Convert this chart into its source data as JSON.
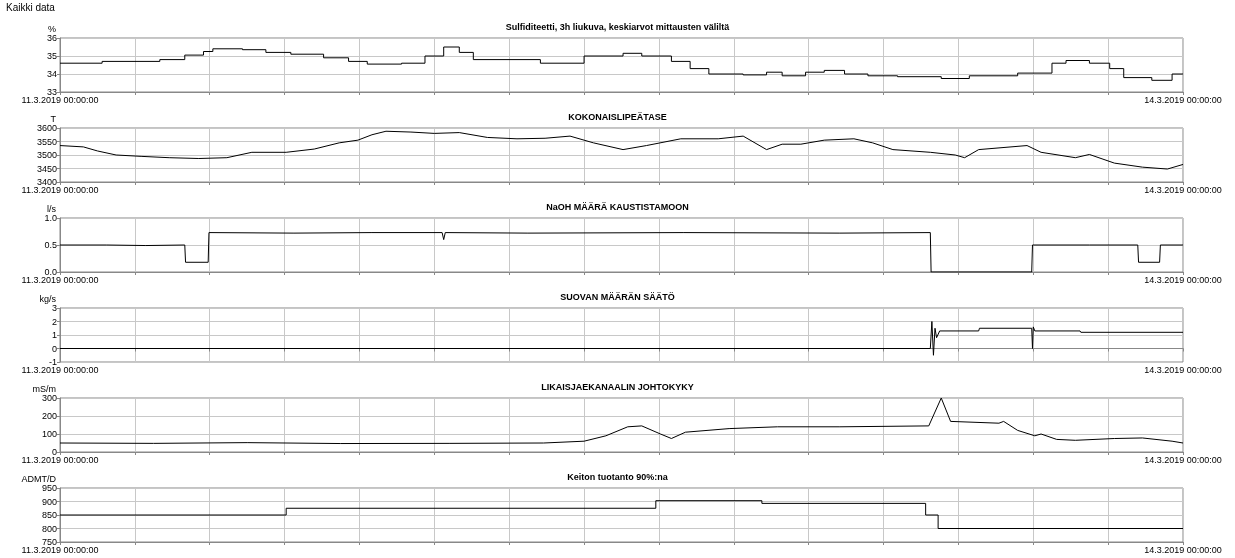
{
  "chart_data": [
    {
      "type": "step",
      "title": "Sulfiditeetti, 3h liukuva, keskiarvot mittausten väliltä",
      "ylabel": "%",
      "annotations": [
        "Kaikki data"
      ],
      "xlim": [
        "2019-03-11T00:00",
        "2019-03-14T00:00"
      ],
      "xticks": [
        {
          "value": "2019-03-11T00:00",
          "label": "11.3.2019 00:00:00"
        },
        {
          "value": "2019-03-11T04:48",
          "label": null
        },
        {
          "value": "2019-03-11T09:36",
          "label": null
        },
        {
          "value": "2019-03-11T14:24",
          "label": null
        },
        {
          "value": "2019-03-11T19:12",
          "label": null
        },
        {
          "value": "2019-03-12T00:00",
          "label": null
        },
        {
          "value": "2019-03-12T04:48",
          "label": null
        },
        {
          "value": "2019-03-12T09:36",
          "label": null
        },
        {
          "value": "2019-03-12T14:24",
          "label": null
        },
        {
          "value": "2019-03-12T19:12",
          "label": null
        },
        {
          "value": "2019-03-13T00:00",
          "label": null
        },
        {
          "value": "2019-03-13T04:48",
          "label": null
        },
        {
          "value": "2019-03-13T09:36",
          "label": null
        },
        {
          "value": "2019-03-13T14:24",
          "label": null
        },
        {
          "value": "2019-03-13T19:12",
          "label": null
        },
        {
          "value": "2019-03-14T00:00",
          "label": "14.3.2019 00:00:00"
        }
      ],
      "ylim": [
        33,
        36
      ],
      "yticks": [
        33,
        34,
        35,
        36
      ],
      "grid": true,
      "marker": "none",
      "x": [
        "2019-03-11T00:00",
        "2019-03-11T02:42",
        "2019-03-11T06:24",
        "2019-03-11T08:00",
        "2019-03-11T09:12",
        "2019-03-11T09:48",
        "2019-03-11T11:42",
        "2019-03-11T13:12",
        "2019-03-11T14:48",
        "2019-03-11T16:54",
        "2019-03-11T18:30",
        "2019-03-11T19:42",
        "2019-03-11T21:54",
        "2019-03-11T23:24",
        "2019-03-12T00:36",
        "2019-03-12T01:36",
        "2019-03-12T02:30",
        "2019-03-12T06:48",
        "2019-03-12T09:36",
        "2019-03-12T12:06",
        "2019-03-12T13:18",
        "2019-03-12T15:12",
        "2019-03-12T16:24",
        "2019-03-12T17:36",
        "2019-03-12T19:48",
        "2019-03-12T21:18",
        "2019-03-12T22:18",
        "2019-03-12T23:48",
        "2019-03-13T01:00",
        "2019-03-13T02:18",
        "2019-03-13T03:48",
        "2019-03-13T05:42",
        "2019-03-13T08:30",
        "2019-03-13T10:18",
        "2019-03-13T13:24",
        "2019-03-13T15:36",
        "2019-03-13T16:30",
        "2019-03-13T18:00",
        "2019-03-13T19:18",
        "2019-03-13T20:12",
        "2019-03-13T22:00",
        "2019-03-13T23:18",
        "2019-03-14T00:00"
      ],
      "series": [
        {
          "color": "#000000",
          "values": [
            34.6,
            34.7,
            34.8,
            35.05,
            35.25,
            35.4,
            35.35,
            35.2,
            35.1,
            34.9,
            34.7,
            34.55,
            34.6,
            35.0,
            35.5,
            35.2,
            34.8,
            34.6,
            35.0,
            35.15,
            35.0,
            34.7,
            34.3,
            34.0,
            33.95,
            34.1,
            33.9,
            34.1,
            34.2,
            34.0,
            33.9,
            33.85,
            33.75,
            33.9,
            34.05,
            34.6,
            34.75,
            34.6,
            34.3,
            33.8,
            33.65,
            34.0,
            34.0
          ]
        }
      ]
    },
    {
      "type": "line",
      "title": "KOKONAISLIPEÄTASE",
      "ylabel": "T",
      "xlim": [
        "2019-03-11T00:00",
        "2019-03-14T00:00"
      ],
      "xticks": [
        {
          "value": "2019-03-11T00:00",
          "label": "11.3.2019 00:00:00"
        },
        {
          "value": "2019-03-11T04:48",
          "label": null
        },
        {
          "value": "2019-03-11T09:36",
          "label": null
        },
        {
          "value": "2019-03-11T14:24",
          "label": null
        },
        {
          "value": "2019-03-11T19:12",
          "label": null
        },
        {
          "value": "2019-03-12T00:00",
          "label": null
        },
        {
          "value": "2019-03-12T04:48",
          "label": null
        },
        {
          "value": "2019-03-12T09:36",
          "label": null
        },
        {
          "value": "2019-03-12T14:24",
          "label": null
        },
        {
          "value": "2019-03-12T19:12",
          "label": null
        },
        {
          "value": "2019-03-13T00:00",
          "label": null
        },
        {
          "value": "2019-03-13T04:48",
          "label": null
        },
        {
          "value": "2019-03-13T09:36",
          "label": null
        },
        {
          "value": "2019-03-13T14:24",
          "label": null
        },
        {
          "value": "2019-03-13T19:12",
          "label": null
        },
        {
          "value": "2019-03-14T00:00",
          "label": "14.3.2019 00:00:00"
        }
      ],
      "ylim": [
        3400,
        3600
      ],
      "yticks": [
        3400,
        3450,
        3500,
        3550,
        3600
      ],
      "grid": true,
      "marker": "none",
      "x": [
        "2019-03-11T00:00",
        "2019-03-11T01:30",
        "2019-03-11T02:24",
        "2019-03-11T03:36",
        "2019-03-11T05:12",
        "2019-03-11T07:00",
        "2019-03-11T08:54",
        "2019-03-11T10:42",
        "2019-03-11T12:18",
        "2019-03-11T14:30",
        "2019-03-11T16:18",
        "2019-03-11T17:54",
        "2019-03-11T19:06",
        "2019-03-11T20:00",
        "2019-03-11T20:54",
        "2019-03-11T22:30",
        "2019-03-12T00:00",
        "2019-03-12T01:36",
        "2019-03-12T03:24",
        "2019-03-12T05:18",
        "2019-03-12T07:06",
        "2019-03-12T08:42",
        "2019-03-12T10:12",
        "2019-03-12T12:06",
        "2019-03-12T13:36",
        "2019-03-12T15:48",
        "2019-03-12T18:12",
        "2019-03-12T19:48",
        "2019-03-12T21:18",
        "2019-03-12T22:18",
        "2019-03-12T23:30",
        "2019-03-13T01:00",
        "2019-03-13T02:54",
        "2019-03-13T04:06",
        "2019-03-13T05:24",
        "2019-03-13T07:48",
        "2019-03-13T09:24",
        "2019-03-13T10:00",
        "2019-03-13T10:54",
        "2019-03-13T14:00",
        "2019-03-13T14:54",
        "2019-03-13T17:06",
        "2019-03-13T18:00",
        "2019-03-13T19:36",
        "2019-03-13T21:24",
        "2019-03-13T23:00",
        "2019-03-14T00:00"
      ],
      "series": [
        {
          "color": "#000000",
          "values": [
            3535,
            3530,
            3515,
            3500,
            3495,
            3490,
            3487,
            3490,
            3510,
            3510,
            3522,
            3545,
            3555,
            3575,
            3588,
            3585,
            3580,
            3583,
            3565,
            3560,
            3562,
            3570,
            3545,
            3520,
            3535,
            3560,
            3560,
            3570,
            3520,
            3540,
            3540,
            3555,
            3560,
            3545,
            3520,
            3510,
            3500,
            3490,
            3520,
            3535,
            3510,
            3490,
            3502,
            3470,
            3455,
            3448,
            3465
          ]
        }
      ]
    },
    {
      "type": "line",
      "title": "NaOH MÄÄRÄ KAUSTISTAMOON",
      "ylabel": "l/s",
      "xlim": [
        "2019-03-11T00:00",
        "2019-03-14T00:00"
      ],
      "xticks": [
        {
          "value": "2019-03-11T00:00",
          "label": "11.3.2019 00:00:00"
        },
        {
          "value": "2019-03-11T04:48",
          "label": null
        },
        {
          "value": "2019-03-11T09:36",
          "label": null
        },
        {
          "value": "2019-03-11T14:24",
          "label": null
        },
        {
          "value": "2019-03-11T19:12",
          "label": null
        },
        {
          "value": "2019-03-12T00:00",
          "label": null
        },
        {
          "value": "2019-03-12T04:48",
          "label": null
        },
        {
          "value": "2019-03-12T09:36",
          "label": null
        },
        {
          "value": "2019-03-12T14:24",
          "label": null
        },
        {
          "value": "2019-03-12T19:12",
          "label": null
        },
        {
          "value": "2019-03-13T00:00",
          "label": null
        },
        {
          "value": "2019-03-13T04:48",
          "label": null
        },
        {
          "value": "2019-03-13T09:36",
          "label": null
        },
        {
          "value": "2019-03-13T14:24",
          "label": null
        },
        {
          "value": "2019-03-13T19:12",
          "label": null
        },
        {
          "value": "2019-03-14T00:00",
          "label": "14.3.2019 00:00:00"
        }
      ],
      "ylim": [
        0,
        1
      ],
      "yticks": [
        {
          "value": 0,
          "label": "0.0"
        },
        {
          "value": 0.5,
          "label": "0.5"
        },
        {
          "value": 1,
          "label": "1.0"
        }
      ],
      "grid": true,
      "marker": "none",
      "x": [
        "2019-03-11T00:00",
        "2019-03-11T03:00",
        "2019-03-11T05:30",
        "2019-03-11T08:00",
        "2019-03-11T08:03",
        "2019-03-11T09:30",
        "2019-03-11T09:33",
        "2019-03-11T15:00",
        "2019-03-11T20:00",
        "2019-03-12T00:30",
        "2019-03-12T00:36",
        "2019-03-12T00:42",
        "2019-03-12T06:00",
        "2019-03-12T16:00",
        "2019-03-13T02:00",
        "2019-03-13T07:48",
        "2019-03-13T07:51",
        "2019-03-13T14:18",
        "2019-03-13T14:21",
        "2019-03-13T18:00",
        "2019-03-13T21:06",
        "2019-03-13T21:09",
        "2019-03-13T22:30",
        "2019-03-13T22:33",
        "2019-03-14T00:00"
      ],
      "series": [
        {
          "color": "#000000",
          "values": [
            0.5,
            0.5,
            0.49,
            0.5,
            0.18,
            0.18,
            0.73,
            0.72,
            0.73,
            0.73,
            0.6,
            0.73,
            0.72,
            0.73,
            0.72,
            0.73,
            0.0,
            0.0,
            0.5,
            0.5,
            0.5,
            0.18,
            0.18,
            0.5,
            0.5
          ]
        }
      ]
    },
    {
      "type": "line",
      "title": "SUOVAN MÄÄRÄN SÄÄTÖ",
      "ylabel": "kg/s",
      "xlim": [
        "2019-03-11T00:00",
        "2019-03-14T00:00"
      ],
      "xticks": [
        {
          "value": "2019-03-11T00:00",
          "label": "11.3.2019 00:00:00"
        },
        {
          "value": "2019-03-11T04:48",
          "label": null
        },
        {
          "value": "2019-03-11T09:36",
          "label": null
        },
        {
          "value": "2019-03-11T14:24",
          "label": null
        },
        {
          "value": "2019-03-11T19:12",
          "label": null
        },
        {
          "value": "2019-03-12T00:00",
          "label": null
        },
        {
          "value": "2019-03-12T04:48",
          "label": null
        },
        {
          "value": "2019-03-12T09:36",
          "label": null
        },
        {
          "value": "2019-03-12T14:24",
          "label": null
        },
        {
          "value": "2019-03-12T19:12",
          "label": null
        },
        {
          "value": "2019-03-13T00:00",
          "label": null
        },
        {
          "value": "2019-03-13T04:48",
          "label": null
        },
        {
          "value": "2019-03-13T09:36",
          "label": null
        },
        {
          "value": "2019-03-13T14:24",
          "label": null
        },
        {
          "value": "2019-03-13T19:12",
          "label": null
        },
        {
          "value": "2019-03-14T00:00",
          "label": "14.3.2019 00:00:00"
        }
      ],
      "ylim": [
        -1,
        3
      ],
      "yticks": [
        -1,
        0,
        1,
        2,
        3
      ],
      "grid": true,
      "marker": "none",
      "x": [
        "2019-03-11T00:00",
        "2019-03-13T07:48",
        "2019-03-13T07:54",
        "2019-03-13T08:00",
        "2019-03-13T08:06",
        "2019-03-13T08:12",
        "2019-03-13T08:24",
        "2019-03-13T10:54",
        "2019-03-13T10:57",
        "2019-03-13T14:18",
        "2019-03-13T14:21",
        "2019-03-13T14:24",
        "2019-03-13T14:30",
        "2019-03-13T17:24",
        "2019-03-13T17:27",
        "2019-03-14T00:00"
      ],
      "series": [
        {
          "color": "#000000",
          "values": [
            0,
            0,
            2,
            -0.5,
            1.5,
            0.8,
            1.3,
            1.3,
            1.5,
            1.5,
            0,
            1.6,
            1.3,
            1.3,
            1.2,
            1.2
          ]
        }
      ]
    },
    {
      "type": "line",
      "title": "LIKAISJAEKANAALIN JOHTOKYKY",
      "ylabel": "mS/m",
      "xlim": [
        "2019-03-11T00:00",
        "2019-03-14T00:00"
      ],
      "xticks": [
        {
          "value": "2019-03-11T00:00",
          "label": "11.3.2019 00:00:00"
        },
        {
          "value": "2019-03-11T04:48",
          "label": null
        },
        {
          "value": "2019-03-11T09:36",
          "label": null
        },
        {
          "value": "2019-03-11T14:24",
          "label": null
        },
        {
          "value": "2019-03-11T19:12",
          "label": null
        },
        {
          "value": "2019-03-12T00:00",
          "label": null
        },
        {
          "value": "2019-03-12T04:48",
          "label": null
        },
        {
          "value": "2019-03-12T09:36",
          "label": null
        },
        {
          "value": "2019-03-12T14:24",
          "label": null
        },
        {
          "value": "2019-03-12T19:12",
          "label": null
        },
        {
          "value": "2019-03-13T00:00",
          "label": null
        },
        {
          "value": "2019-03-13T04:48",
          "label": null
        },
        {
          "value": "2019-03-13T09:36",
          "label": null
        },
        {
          "value": "2019-03-13T14:24",
          "label": null
        },
        {
          "value": "2019-03-13T19:12",
          "label": null
        },
        {
          "value": "2019-03-14T00:00",
          "label": "14.3.2019 00:00:00"
        }
      ],
      "ylim": [
        0,
        300
      ],
      "yticks": [
        0,
        100,
        200,
        300
      ],
      "grid": true,
      "marker": "none",
      "x": [
        "2019-03-11T00:00",
        "2019-03-11T06:00",
        "2019-03-11T12:00",
        "2019-03-11T18:00",
        "2019-03-12T01:00",
        "2019-03-12T07:00",
        "2019-03-12T09:36",
        "2019-03-12T11:00",
        "2019-03-12T12:24",
        "2019-03-12T13:18",
        "2019-03-12T14:30",
        "2019-03-12T15:12",
        "2019-03-12T16:06",
        "2019-03-12T18:54",
        "2019-03-12T22:00",
        "2019-03-13T02:00",
        "2019-03-13T07:42",
        "2019-03-13T08:30",
        "2019-03-13T09:06",
        "2019-03-13T12:12",
        "2019-03-13T12:30",
        "2019-03-13T13:24",
        "2019-03-13T14:30",
        "2019-03-13T14:54",
        "2019-03-13T15:54",
        "2019-03-13T17:06",
        "2019-03-13T19:36",
        "2019-03-13T21:24",
        "2019-03-13T23:18",
        "2019-03-14T00:00"
      ],
      "series": [
        {
          "color": "#000000",
          "values": [
            50,
            48,
            52,
            47,
            48,
            50,
            60,
            90,
            140,
            145,
            100,
            75,
            110,
            130,
            140,
            140,
            145,
            300,
            170,
            160,
            170,
            120,
            90,
            100,
            70,
            65,
            75,
            78,
            60,
            50
          ]
        }
      ]
    },
    {
      "type": "step",
      "title": "Keiton tuotanto 90%:na",
      "ylabel": "ADMT/D",
      "xlim": [
        "2019-03-11T00:00",
        "2019-03-14T00:00"
      ],
      "xticks": [
        {
          "value": "2019-03-11T00:00",
          "label": "11.3.2019 00:00:00"
        },
        {
          "value": "2019-03-11T04:48",
          "label": null
        },
        {
          "value": "2019-03-11T09:36",
          "label": null
        },
        {
          "value": "2019-03-11T14:24",
          "label": null
        },
        {
          "value": "2019-03-11T19:12",
          "label": null
        },
        {
          "value": "2019-03-12T00:00",
          "label": null
        },
        {
          "value": "2019-03-12T04:48",
          "label": null
        },
        {
          "value": "2019-03-12T09:36",
          "label": null
        },
        {
          "value": "2019-03-12T14:24",
          "label": null
        },
        {
          "value": "2019-03-12T19:12",
          "label": null
        },
        {
          "value": "2019-03-13T00:00",
          "label": null
        },
        {
          "value": "2019-03-13T04:48",
          "label": null
        },
        {
          "value": "2019-03-13T09:36",
          "label": null
        },
        {
          "value": "2019-03-13T14:24",
          "label": null
        },
        {
          "value": "2019-03-13T19:12",
          "label": null
        },
        {
          "value": "2019-03-14T00:00",
          "label": "14.3.2019 00:00:00"
        }
      ],
      "ylim": [
        750,
        950
      ],
      "yticks": [
        750,
        800,
        850,
        900,
        950
      ],
      "grid": true,
      "marker": "none",
      "x": [
        "2019-03-11T00:00",
        "2019-03-11T14:30",
        "2019-03-12T14:12",
        "2019-03-12T21:00",
        "2019-03-13T07:30",
        "2019-03-13T08:18",
        "2019-03-14T00:00"
      ],
      "series": [
        {
          "color": "#000000",
          "values": [
            850,
            875,
            903,
            893,
            850,
            800,
            800
          ]
        }
      ]
    }
  ]
}
